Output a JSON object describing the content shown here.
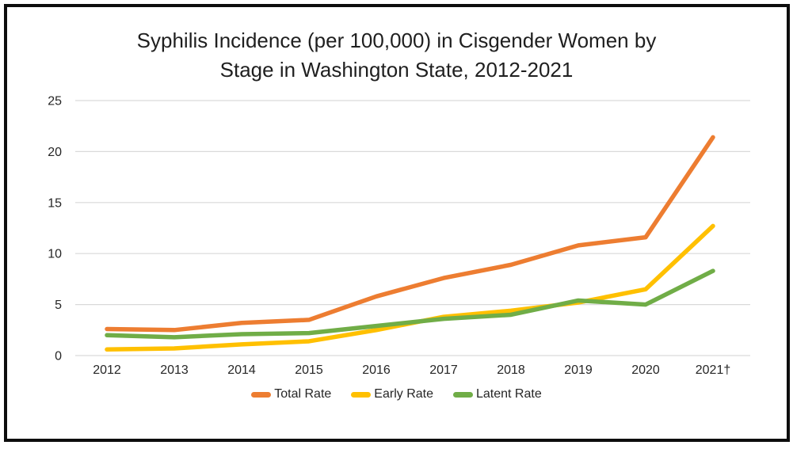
{
  "chart_data": {
    "type": "line",
    "title": "Syphilis Incidence (per 100,000) in Cisgender Women by Stage in Washington State, 2012-2021",
    "title_lines": [
      "Syphilis Incidence (per 100,000) in Cisgender Women by",
      "Stage in Washington State, 2012-2021"
    ],
    "categories": [
      "2012",
      "2013",
      "2014",
      "2015",
      "2016",
      "2017",
      "2018",
      "2019",
      "2020",
      "2021†"
    ],
    "series": [
      {
        "name": "Total Rate",
        "color": "#ED7D31",
        "values": [
          2.6,
          2.5,
          3.2,
          3.5,
          5.8,
          7.6,
          8.9,
          10.8,
          11.6,
          21.4
        ]
      },
      {
        "name": "Early Rate",
        "color": "#FFC000",
        "values": [
          0.6,
          0.7,
          1.1,
          1.4,
          2.5,
          3.8,
          4.4,
          5.2,
          6.5,
          12.7
        ]
      },
      {
        "name": "Latent Rate",
        "color": "#70AD47",
        "values": [
          2.0,
          1.8,
          2.1,
          2.2,
          2.9,
          3.6,
          4.0,
          5.4,
          5.0,
          8.3
        ]
      }
    ],
    "y_ticks": [
      0,
      5,
      10,
      15,
      20,
      25
    ],
    "ylim": [
      0,
      25
    ],
    "xlabel": "",
    "ylabel": "",
    "grid": "horizontal",
    "gridline_color": "#D9D9D9",
    "text_color": "#262626",
    "legend_position": "bottom"
  }
}
